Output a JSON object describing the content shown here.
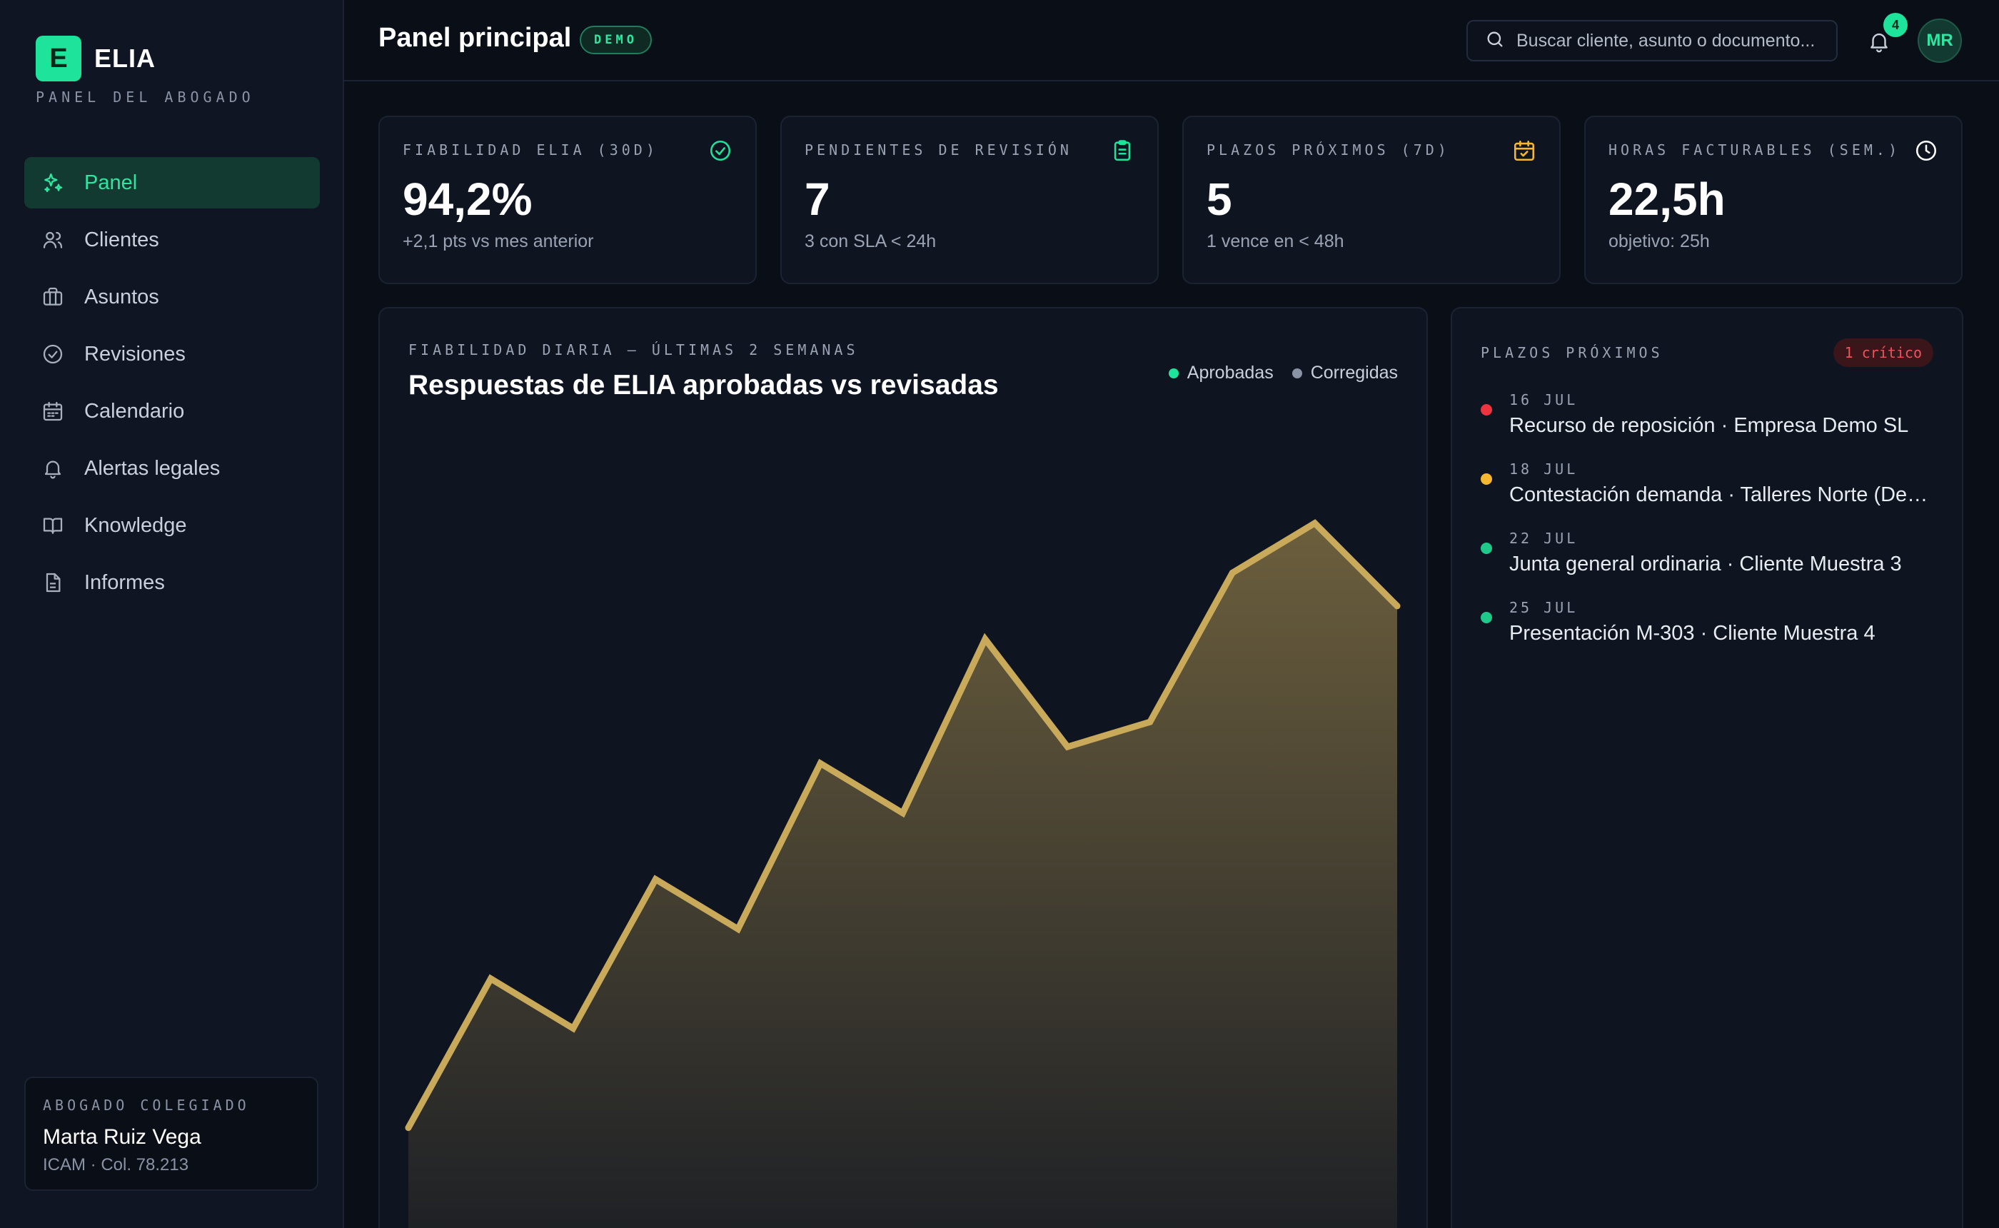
{
  "brand": {
    "mark": "E",
    "name": "ELIA",
    "subtitle": "PANEL DEL ABOGADO"
  },
  "nav": {
    "items": [
      {
        "label": "Panel",
        "icon": "sparkles-icon",
        "active": true
      },
      {
        "label": "Clientes",
        "icon": "users-icon",
        "active": false
      },
      {
        "label": "Asuntos",
        "icon": "briefcase-icon",
        "active": false
      },
      {
        "label": "Revisiones",
        "icon": "check-circle-icon",
        "active": false
      },
      {
        "label": "Calendario",
        "icon": "calendar-icon",
        "active": false
      },
      {
        "label": "Alertas legales",
        "icon": "bell-icon",
        "active": false
      },
      {
        "label": "Knowledge",
        "icon": "book-icon",
        "active": false
      },
      {
        "label": "Informes",
        "icon": "document-icon",
        "active": false
      }
    ]
  },
  "user": {
    "role": "ABOGADO COLEGIADO",
    "name": "Marta Ruiz Vega",
    "meta": "ICAM · Col. 78.213"
  },
  "header": {
    "title": "Panel principal",
    "badge": "DEMO",
    "search_placeholder": "Buscar cliente, asunto o documento...",
    "notifications": "4",
    "avatar_initials": "MR"
  },
  "kpis": [
    {
      "label": "FIABILIDAD ELIA (30D)",
      "value": "94,2%",
      "sub": "+2,1 pts vs mes anterior",
      "icon": "check-circle-icon",
      "color": "#1ee39a"
    },
    {
      "label": "PENDIENTES DE REVISIÓN",
      "value": "7",
      "sub": "3 con SLA < 24h",
      "icon": "clipboard-icon",
      "color": "#1ee39a"
    },
    {
      "label": "PLAZOS PRÓXIMOS (7D)",
      "value": "5",
      "sub": "1 vence en < 48h",
      "icon": "calendar-check-icon",
      "color": "#f5b82e"
    },
    {
      "label": "HORAS FACTURABLES (SEM.)",
      "value": "22,5h",
      "sub": "objetivo: 25h",
      "icon": "clock-icon",
      "color": "#ffffff"
    }
  ],
  "chart": {
    "eyebrow": "FIABILIDAD DIARIA — ÚLTIMAS 2 SEMANAS",
    "title": "Respuestas de ELIA aprobadas vs revisadas"
  },
  "chart_data": {
    "type": "area",
    "title": "Respuestas de ELIA aprobadas vs revisadas",
    "series": [
      {
        "name": "Aprobadas",
        "color": "#1ee39a",
        "values": []
      },
      {
        "name": "Corregidas",
        "color": "#8a93a6",
        "values": []
      }
    ],
    "line_color": "#c9a95a",
    "plotted_values": [
      14,
      32,
      26,
      44,
      38,
      58,
      52,
      73,
      60,
      63,
      81,
      87,
      77
    ],
    "legend_position": "top-right",
    "grid": false
  },
  "deadlines": {
    "label": "PLAZOS PRÓXIMOS",
    "critical_badge": "1 crítico",
    "items": [
      {
        "date": "16 JUL",
        "text": "Recurso de reposición · Empresa Demo SL",
        "color": "#f0343f"
      },
      {
        "date": "18 JUL",
        "text": "Contestación demanda · Talleres Norte (Demo)",
        "color": "#f5b82e"
      },
      {
        "date": "22 JUL",
        "text": "Junta general ordinaria · Cliente Muestra 3",
        "color": "#1ec98a"
      },
      {
        "date": "25 JUL",
        "text": "Presentación M-303 · Cliente Muestra 4",
        "color": "#1ec98a"
      }
    ]
  }
}
